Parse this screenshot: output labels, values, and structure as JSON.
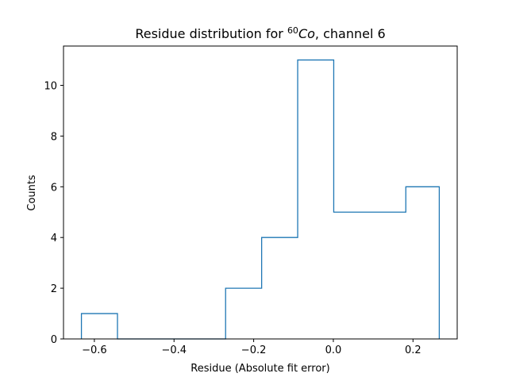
{
  "chart_data": {
    "type": "histogram",
    "title": "Residue distribution for ⁶⁰Co, channel 6",
    "title_parts": {
      "prefix": "Residue distribution for ",
      "superscript": "60",
      "element": "Co",
      "suffix": ", channel 6"
    },
    "xlabel": "Residue (Absolute fit error)",
    "ylabel": "Counts",
    "histtype": "step",
    "color": "#1f77b4",
    "bin_edges": [
      -0.6325,
      -0.542,
      -0.4515,
      -0.361,
      -0.2705,
      -0.18,
      -0.0895,
      0.001,
      0.0915,
      0.182,
      0.266
    ],
    "counts": [
      1,
      0,
      0,
      0,
      2,
      4,
      11,
      5,
      5,
      6
    ],
    "xlim": [
      -0.6775,
      0.311
    ],
    "ylim": [
      0,
      11.55
    ],
    "xticks": [
      -0.6,
      -0.4,
      -0.2,
      0.0,
      0.2
    ],
    "xtick_labels": [
      "−0.6",
      "−0.4",
      "−0.2",
      "0.0",
      "0.2"
    ],
    "yticks": [
      0,
      2,
      4,
      6,
      8,
      10
    ],
    "ytick_labels": [
      "0",
      "2",
      "4",
      "6",
      "8",
      "10"
    ],
    "grid": false,
    "legend": false
  }
}
